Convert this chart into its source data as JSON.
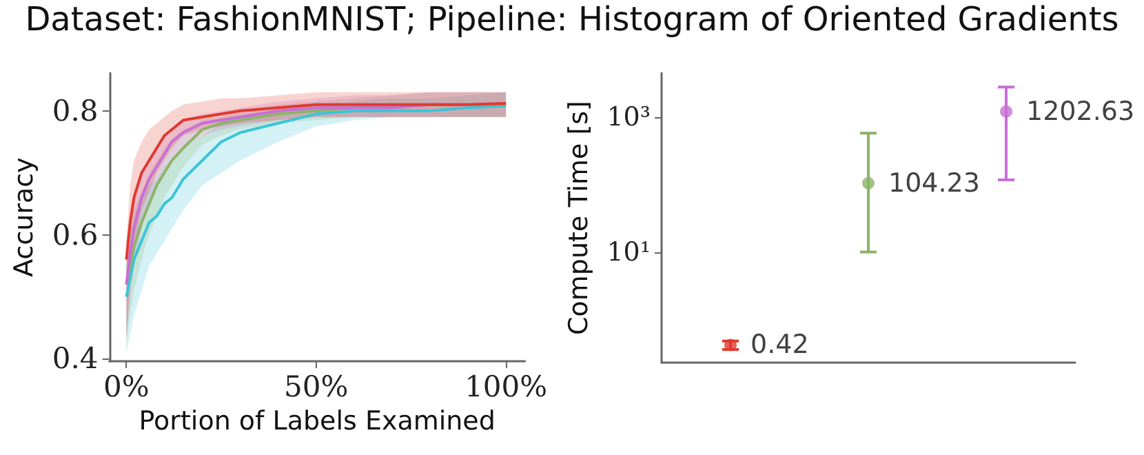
{
  "chart_data": [
    {
      "type": "line",
      "title": "Dataset: FashionMNIST; Pipeline: Histogram of Oriented Gradients",
      "xlabel": "Portion of Labels Examined",
      "ylabel": "Accuracy",
      "x": [
        0,
        1,
        2,
        4,
        6,
        8,
        10,
        12,
        15,
        20,
        25,
        30,
        40,
        50,
        60,
        70,
        80,
        90,
        100
      ],
      "xlim": [
        -4.5,
        105
      ],
      "xticks": [
        {
          "value": 0,
          "label": "0%"
        },
        {
          "value": 50,
          "label": "50%"
        },
        {
          "value": 100,
          "label": "100%"
        }
      ],
      "ylim": [
        0.396,
        0.861
      ],
      "yticks": [
        0.4,
        0.6,
        0.8
      ],
      "series": [
        {
          "color": "#3bc4d8",
          "values": [
            0.5,
            0.53,
            0.56,
            0.59,
            0.62,
            0.63,
            0.65,
            0.66,
            0.69,
            0.72,
            0.75,
            0.765,
            0.78,
            0.795,
            0.8,
            0.8,
            0.8,
            0.805,
            0.808
          ],
          "lower": [
            0.41,
            0.44,
            0.47,
            0.51,
            0.55,
            0.57,
            0.59,
            0.61,
            0.64,
            0.68,
            0.7,
            0.72,
            0.75,
            0.775,
            0.785,
            0.79,
            0.79,
            0.79,
            0.79
          ],
          "upper": [
            0.57,
            0.6,
            0.63,
            0.66,
            0.68,
            0.69,
            0.71,
            0.72,
            0.74,
            0.76,
            0.78,
            0.79,
            0.8,
            0.81,
            0.815,
            0.82,
            0.82,
            0.825,
            0.83
          ]
        },
        {
          "color": "#8cb369",
          "values": [
            0.52,
            0.55,
            0.58,
            0.62,
            0.65,
            0.68,
            0.7,
            0.72,
            0.74,
            0.77,
            0.78,
            0.785,
            0.795,
            0.8,
            0.805,
            0.81,
            0.81,
            0.81,
            0.81
          ],
          "lower": [
            0.43,
            0.47,
            0.51,
            0.56,
            0.6,
            0.63,
            0.66,
            0.68,
            0.71,
            0.745,
            0.76,
            0.77,
            0.78,
            0.785,
            0.79,
            0.79,
            0.79,
            0.79,
            0.79
          ],
          "upper": [
            0.58,
            0.61,
            0.64,
            0.67,
            0.7,
            0.72,
            0.74,
            0.755,
            0.77,
            0.785,
            0.79,
            0.8,
            0.81,
            0.815,
            0.82,
            0.825,
            0.83,
            0.83,
            0.83
          ]
        },
        {
          "color": "#c86dd7",
          "values": [
            0.52,
            0.57,
            0.61,
            0.66,
            0.69,
            0.71,
            0.73,
            0.75,
            0.765,
            0.78,
            0.785,
            0.79,
            0.8,
            0.805,
            0.805,
            0.805,
            0.81,
            0.81,
            0.812
          ],
          "lower": [
            0.44,
            0.5,
            0.55,
            0.61,
            0.65,
            0.68,
            0.7,
            0.72,
            0.74,
            0.76,
            0.77,
            0.775,
            0.785,
            0.79,
            0.79,
            0.79,
            0.79,
            0.79,
            0.79
          ],
          "upper": [
            0.59,
            0.63,
            0.66,
            0.7,
            0.72,
            0.74,
            0.76,
            0.77,
            0.785,
            0.795,
            0.8,
            0.805,
            0.815,
            0.82,
            0.825,
            0.825,
            0.83,
            0.83,
            0.83
          ]
        },
        {
          "color": "#e03a2e",
          "values": [
            0.56,
            0.62,
            0.66,
            0.7,
            0.72,
            0.74,
            0.76,
            0.77,
            0.785,
            0.79,
            0.795,
            0.8,
            0.805,
            0.81,
            0.81,
            0.81,
            0.81,
            0.81,
            0.812
          ],
          "lower": [
            0.42,
            0.52,
            0.58,
            0.64,
            0.67,
            0.7,
            0.72,
            0.74,
            0.76,
            0.77,
            0.775,
            0.78,
            0.785,
            0.79,
            0.79,
            0.79,
            0.79,
            0.79,
            0.79
          ],
          "upper": [
            0.59,
            0.68,
            0.72,
            0.75,
            0.77,
            0.78,
            0.79,
            0.8,
            0.81,
            0.815,
            0.82,
            0.82,
            0.825,
            0.83,
            0.83,
            0.83,
            0.83,
            0.83,
            0.83
          ]
        }
      ]
    },
    {
      "type": "scatter",
      "ylabel": "Compute Time [s]",
      "categories": [
        null,
        null,
        null
      ],
      "log": "y",
      "ylim": [
        0.23,
        4460
      ],
      "yticks": [
        {
          "value": 10,
          "label": "10¹"
        },
        {
          "value": 1000,
          "label": "10³"
        }
      ],
      "values": [
        0.42,
        104.23,
        1202.63
      ],
      "colors": [
        "#e03a2e",
        "#8cb369",
        "#c86dd7"
      ],
      "errors": [
        [
          0.36,
          0.48
        ],
        [
          10,
          575
        ],
        [
          117,
          2770
        ]
      ],
      "marker": "circle",
      "data_labels": true
    }
  ]
}
